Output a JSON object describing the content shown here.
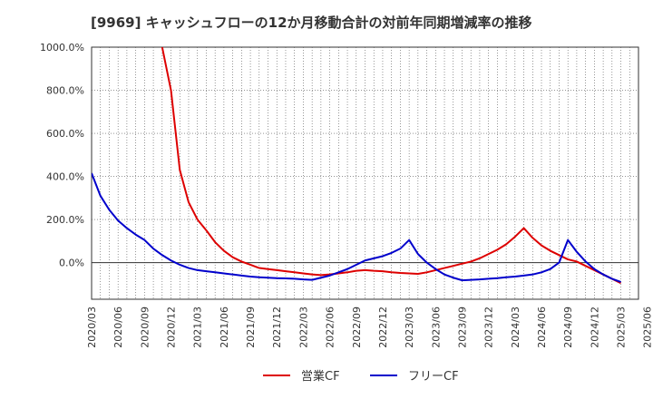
{
  "chart_data": {
    "type": "line",
    "title": "[9969]  キャッシュフローの12か月移動合計の対前年同期増減率の推移",
    "xlabel": "",
    "ylabel": "",
    "ylim": [
      -170,
      1000
    ],
    "y_ticks": [
      0,
      200,
      400,
      600,
      800,
      1000
    ],
    "y_tick_labels": [
      "0.0%",
      "200.0%",
      "400.0%",
      "600.0%",
      "800.0%",
      "1000.0%"
    ],
    "x_tick_labels": [
      "2020/03",
      "2020/06",
      "2020/09",
      "2020/12",
      "2021/03",
      "2021/06",
      "2021/09",
      "2021/12",
      "2022/03",
      "2022/06",
      "2022/09",
      "2022/12",
      "2023/03",
      "2023/06",
      "2023/09",
      "2023/12",
      "2024/03",
      "2024/06",
      "2024/09",
      "2024/12",
      "2025/03",
      "2025/06"
    ],
    "grid": true,
    "legend_position": "bottom",
    "series": [
      {
        "name": "営業CF",
        "color": "#dd0000",
        "values": [
          null,
          null,
          null,
          null,
          null,
          null,
          null,
          null,
          1000,
          800,
          430,
          280,
          200,
          150,
          95,
          55,
          25,
          5,
          -10,
          -25,
          -30,
          -35,
          -40,
          -45,
          -50,
          -55,
          -58,
          -55,
          -50,
          -45,
          -38,
          -35,
          -38,
          -40,
          -45,
          -48,
          -50,
          -52,
          -45,
          -35,
          -25,
          -15,
          -5,
          5,
          20,
          40,
          60,
          85,
          120,
          160,
          115,
          80,
          55,
          35,
          15,
          5,
          -15,
          -35,
          -55,
          -75,
          -95
        ]
      },
      {
        "name": "フリーCF",
        "color": "#0000cc",
        "values": [
          415,
          310,
          245,
          195,
          160,
          130,
          105,
          65,
          35,
          10,
          -10,
          -25,
          -35,
          -40,
          -45,
          -50,
          -55,
          -60,
          -65,
          -68,
          -70,
          -72,
          -73,
          -75,
          -78,
          -80,
          -70,
          -60,
          -45,
          -30,
          -10,
          10,
          20,
          30,
          45,
          65,
          105,
          40,
          0,
          -30,
          -55,
          -70,
          -82,
          -80,
          -78,
          -75,
          -72,
          -68,
          -65,
          -60,
          -55,
          -45,
          -30,
          0,
          105,
          50,
          5,
          -30,
          -55,
          -75,
          -90
        ]
      }
    ]
  }
}
